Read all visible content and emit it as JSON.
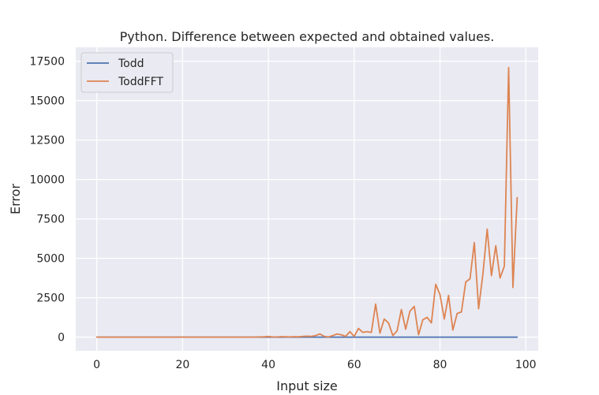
{
  "chart_data": {
    "type": "line",
    "title": "Python. Difference between expected and obtained values.",
    "xlabel": "Input size",
    "ylabel": "Error",
    "xlim": [
      -4.9,
      102.9
    ],
    "ylim": [
      -870,
      18380
    ],
    "xticks": [
      0,
      20,
      40,
      60,
      80,
      100
    ],
    "yticks": [
      0,
      2500,
      5000,
      7500,
      10000,
      12500,
      15000,
      17500
    ],
    "grid": true,
    "legend_position": "top-left",
    "x": [
      0,
      1,
      2,
      3,
      4,
      5,
      6,
      7,
      8,
      9,
      10,
      11,
      12,
      13,
      14,
      15,
      16,
      17,
      18,
      19,
      20,
      21,
      22,
      23,
      24,
      25,
      26,
      27,
      28,
      29,
      30,
      31,
      32,
      33,
      34,
      35,
      36,
      37,
      38,
      39,
      40,
      41,
      42,
      43,
      44,
      45,
      46,
      47,
      48,
      49,
      50,
      51,
      52,
      53,
      54,
      55,
      56,
      57,
      58,
      59,
      60,
      61,
      62,
      63,
      64,
      65,
      66,
      67,
      68,
      69,
      70,
      71,
      72,
      73,
      74,
      75,
      76,
      77,
      78,
      79,
      80,
      81,
      82,
      83,
      84,
      85,
      86,
      87,
      88,
      89,
      90,
      91,
      92,
      93,
      94,
      95,
      96,
      97,
      98
    ],
    "series": [
      {
        "name": "Todd",
        "color": "#4c72b0",
        "values": [
          0,
          0,
          0,
          0,
          0,
          0,
          0,
          0,
          0,
          0,
          0,
          0,
          0,
          0,
          0,
          0,
          0,
          0,
          0,
          0,
          0,
          0,
          0,
          0,
          0,
          0,
          0,
          0,
          0,
          0,
          0,
          0,
          0,
          0,
          0,
          0,
          0,
          0,
          0,
          0,
          0,
          0,
          0,
          0,
          0,
          0,
          0,
          0,
          0,
          0,
          0,
          0,
          0,
          0,
          0,
          0,
          0,
          0,
          0,
          0,
          0,
          0,
          0,
          0,
          0,
          0,
          0,
          0,
          0,
          0,
          0,
          0,
          0,
          0,
          0,
          0,
          0,
          0,
          0,
          0,
          0,
          0,
          0,
          0,
          0,
          0,
          0,
          0,
          0,
          0,
          0,
          0,
          0,
          0,
          0,
          0,
          0,
          0,
          0
        ]
      },
      {
        "name": "ToddFFT",
        "color": "#dd8452",
        "values": [
          0,
          0,
          0,
          0,
          0,
          0,
          0,
          0,
          0,
          0,
          0,
          0,
          0,
          0,
          0,
          0,
          0,
          0,
          0,
          0,
          0,
          0,
          0,
          0,
          0,
          0,
          0,
          0,
          0,
          0,
          0,
          0,
          0,
          0,
          0,
          0,
          0,
          0,
          10,
          20,
          40,
          10,
          10,
          30,
          20,
          10,
          30,
          20,
          50,
          60,
          50,
          100,
          200,
          50,
          10,
          100,
          200,
          150,
          50,
          350,
          50,
          550,
          300,
          350,
          300,
          2100,
          250,
          1150,
          900,
          100,
          400,
          1750,
          500,
          1650,
          1950,
          150,
          1100,
          1250,
          900,
          3350,
          2700,
          1150,
          2650,
          450,
          1500,
          1600,
          3500,
          3700,
          6000,
          1800,
          4000,
          6850,
          3900,
          5800,
          3750,
          4500,
          17100,
          3150,
          8850
        ]
      }
    ]
  }
}
